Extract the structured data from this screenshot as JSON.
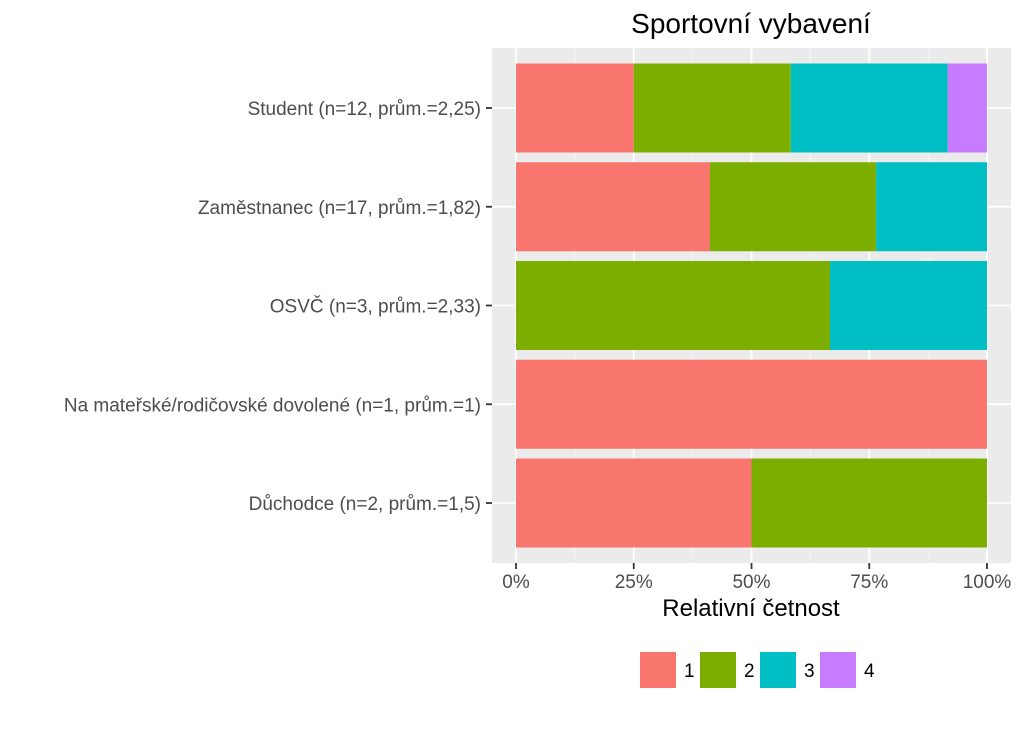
{
  "chart_data": {
    "type": "bar",
    "orientation": "horizontal",
    "stacked": true,
    "title": "Sportovní vybavení",
    "xlabel": "Relativní četnost",
    "ylabel": "",
    "xlim": [
      0,
      1
    ],
    "x_ticks": [
      "0%",
      "25%",
      "50%",
      "75%",
      "100%"
    ],
    "grid": true,
    "legend_position": "bottom",
    "categories": [
      "Student (n=12, prům.=2,25)",
      "Zaměstnanec (n=17, prům.=1,82)",
      "OSVČ (n=3, prům.=2,33)",
      "Na mateřské/rodičovské dovolené (n=1, prům.=1)",
      "Důchodce (n=2, prům.=1,5)"
    ],
    "series": [
      {
        "name": "1",
        "color": "#F8766D",
        "values": [
          0.25,
          0.4118,
          0.0,
          1.0,
          0.5
        ]
      },
      {
        "name": "2",
        "color": "#7CAE00",
        "values": [
          0.3333,
          0.3529,
          0.6667,
          0.0,
          0.5
        ]
      },
      {
        "name": "3",
        "color": "#00BFC4",
        "values": [
          0.3333,
          0.2353,
          0.3333,
          0.0,
          0.0
        ]
      },
      {
        "name": "4",
        "color": "#C77CFF",
        "values": [
          0.0833,
          0.0,
          0.0,
          0.0,
          0.0
        ]
      }
    ]
  }
}
